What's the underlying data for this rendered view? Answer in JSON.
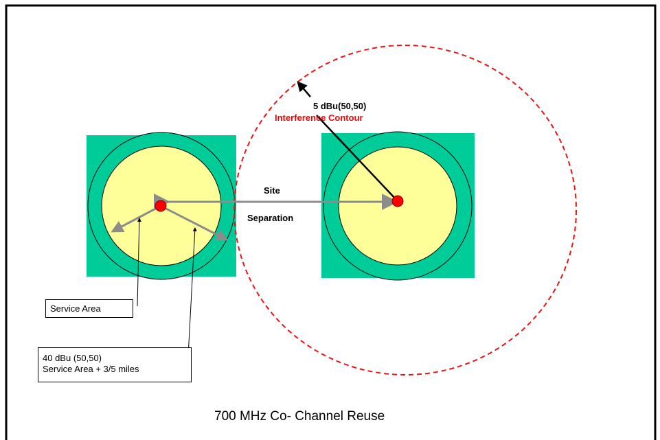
{
  "labels": {
    "interference_value": "5 dBu(50,50)",
    "interference_name": "Interference Contour",
    "site_1": "Site",
    "site_2": "Separation",
    "service_area": "Service Area",
    "contour_40_line1": "40 dBu (50,50)",
    "contour_40_line2": "Service Area + 3/5 miles",
    "caption": "700 MHz Co- Channel Reuse"
  },
  "colors": {
    "square_fill": "#00cc99",
    "inner_fill": "#ffff99",
    "site_dot": "#ff0000",
    "interference_contour": "#ee1111",
    "arrow": "#8c8c8c"
  }
}
